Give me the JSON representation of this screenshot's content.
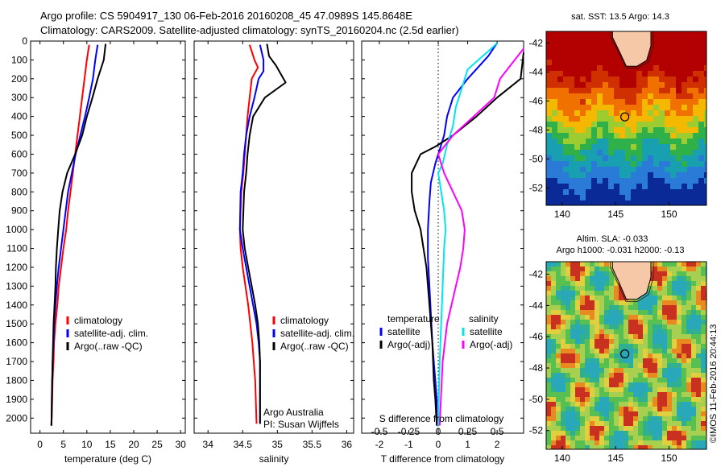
{
  "header": {
    "line1": "Argo profile: CS 5904917_130 06-Feb-2016 20160208_45 47.0989S 145.8648E",
    "line2": "Climatology: CARS2009. Satellite-adjusted climatology: synTS_20160204.nc (2.5d earlier)"
  },
  "colors": {
    "climatology": "#ff0000",
    "satellite": "#0000ff",
    "argo": "#000000",
    "sat_salinity": "#00e5ee",
    "argo_salinity": "#ff00ff"
  },
  "depth_axis": {
    "ticks": [
      0,
      100,
      200,
      300,
      400,
      500,
      600,
      700,
      800,
      900,
      1000,
      1100,
      1200,
      1300,
      1400,
      1500,
      1600,
      1700,
      1800,
      1900,
      2000
    ]
  },
  "chart_data": [
    {
      "type": "line",
      "id": "temperature",
      "xlabel": "temperature (deg C)",
      "xlim": [
        -2,
        31
      ],
      "ylim": [
        0,
        2080
      ],
      "xticks": [
        0,
        5,
        10,
        15,
        20,
        25,
        30
      ],
      "legend": [
        "climatology",
        "satellite-adj. clim.",
        "Argo(..raw -QC)"
      ],
      "series": [
        {
          "name": "climatology",
          "color": "#ff0000",
          "x": [
            10.5,
            10.0,
            9.5,
            9.0,
            8.5,
            8.0,
            7.5,
            7.0,
            6.5,
            6.0,
            5.6,
            5.0,
            4.5,
            4.0,
            3.7,
            3.3,
            3.0,
            2.9,
            2.7,
            2.6,
            2.5,
            2.4
          ],
          "y": [
            20,
            100,
            200,
            300,
            400,
            500,
            600,
            700,
            800,
            900,
            1000,
            1100,
            1200,
            1300,
            1400,
            1500,
            1600,
            1700,
            1800,
            1900,
            2000,
            2040
          ]
        },
        {
          "name": "satellite-adj. clim.",
          "color": "#0000ff",
          "x": [
            12.3,
            11.8,
            11.3,
            10.5,
            9.6,
            8.6,
            7.6,
            6.8,
            6.0,
            5.5,
            5.0,
            4.5,
            4.0,
            3.6,
            3.3,
            3.0,
            2.9,
            2.7,
            2.6,
            2.5,
            2.45
          ],
          "y": [
            20,
            100,
            200,
            300,
            400,
            500,
            600,
            700,
            800,
            900,
            1000,
            1100,
            1200,
            1300,
            1400,
            1500,
            1600,
            1700,
            1800,
            1900,
            2040
          ]
        },
        {
          "name": "Argo(..raw -QC)",
          "color": "#000000",
          "x": [
            14.0,
            13.6,
            12.3,
            11.2,
            10.0,
            9.0,
            7.5,
            5.8,
            4.8,
            4.2,
            3.9,
            3.6,
            3.4,
            3.3,
            3.1,
            2.9,
            2.8,
            2.7,
            2.6,
            2.55,
            2.45
          ],
          "y": [
            15,
            100,
            200,
            300,
            400,
            500,
            600,
            700,
            800,
            900,
            1000,
            1100,
            1200,
            1300,
            1400,
            1500,
            1600,
            1700,
            1800,
            1900,
            2040
          ]
        }
      ]
    },
    {
      "type": "line",
      "id": "salinity",
      "xlabel": "salinity",
      "xlim": [
        33.8,
        36.1
      ],
      "ylim": [
        0,
        2080
      ],
      "xticks": [
        34,
        34.5,
        35,
        35.5,
        36
      ],
      "legend": [
        "climatology",
        "satellite-adj. clim.",
        "Argo(..raw -QC)"
      ],
      "series": [
        {
          "name": "climatology",
          "color": "#ff0000",
          "x": [
            34.6,
            34.67,
            34.72,
            34.63,
            34.6,
            34.57,
            34.55,
            34.53,
            34.51,
            34.48,
            34.46,
            34.47,
            34.5,
            34.54,
            34.58,
            34.61,
            34.64,
            34.66,
            34.68,
            34.7
          ],
          "y": [
            20,
            100,
            140,
            200,
            300,
            400,
            500,
            600,
            700,
            800,
            1000,
            1100,
            1200,
            1300,
            1400,
            1500,
            1600,
            1700,
            1800,
            2030
          ]
        },
        {
          "name": "satellite-adj. clim.",
          "color": "#0000ff",
          "x": [
            34.75,
            34.8,
            34.8,
            34.73,
            34.67,
            34.6,
            34.55,
            34.52,
            34.5,
            34.47,
            34.46,
            34.5,
            34.55,
            34.6,
            34.65,
            34.7,
            34.73,
            34.75,
            34.75
          ],
          "y": [
            20,
            100,
            160,
            200,
            300,
            400,
            500,
            600,
            700,
            800,
            1000,
            1100,
            1200,
            1300,
            1400,
            1500,
            1600,
            1700,
            2030
          ]
        },
        {
          "name": "Argo(..raw -QC)",
          "color": "#000000",
          "x": [
            34.85,
            34.88,
            34.98,
            35.12,
            34.82,
            34.65,
            34.6,
            34.57,
            34.55,
            34.52,
            34.5,
            34.53,
            34.58,
            34.63,
            34.68,
            34.72,
            34.74,
            34.75,
            34.75
          ],
          "y": [
            15,
            80,
            130,
            220,
            300,
            400,
            500,
            600,
            700,
            800,
            1000,
            1100,
            1200,
            1300,
            1400,
            1500,
            1600,
            1700,
            2030
          ]
        }
      ],
      "annotation": [
        "Argo Australia",
        "PI: Susan Wijffels"
      ]
    },
    {
      "type": "line",
      "id": "difference",
      "xlabel": "T difference from climatology",
      "xlabel_top": "S difference from climatology",
      "xlim": [
        -2.6,
        2.9
      ],
      "ylim": [
        0,
        2080
      ],
      "xticks": [
        -2,
        -1,
        0,
        1,
        2
      ],
      "xticks_top": [
        "-0.5",
        "-0.25",
        "0",
        "0.25",
        "0.5"
      ],
      "legend_temperature_title": "temperature",
      "legend_salinity_title": "salinity",
      "legend": [
        "satellite",
        "Argo(-adj)",
        "satellite",
        "Argo(-adj)"
      ],
      "series": [
        {
          "name": "satellite",
          "color": "#0000ff",
          "x": [
            2.0,
            1.7,
            1.0,
            0.5,
            0.3,
            0.2,
            0.1,
            -0.1,
            -0.25,
            -0.3,
            -0.35,
            -0.35,
            -0.3,
            -0.25,
            -0.2,
            -0.15,
            -0.1,
            -0.05,
            -0.05
          ],
          "y": [
            10,
            80,
            200,
            300,
            400,
            500,
            550,
            650,
            750,
            850,
            1000,
            1150,
            1300,
            1450,
            1600,
            1700,
            1800,
            1900,
            2040
          ]
        },
        {
          "name": "Argo(-adj)",
          "color": "#000000",
          "x": [
            2.9,
            2.8,
            2.0,
            1.3,
            0.5,
            -0.1,
            -0.6,
            -0.9,
            -0.9,
            -0.8,
            -0.6,
            -0.5,
            -0.4,
            -0.3,
            -0.2,
            -0.15,
            -0.1,
            -0.05
          ],
          "y": [
            60,
            200,
            300,
            400,
            500,
            560,
            600,
            700,
            800,
            900,
            1000,
            1100,
            1200,
            1400,
            1600,
            1800,
            1900,
            2040
          ]
        },
        {
          "name": "satellite",
          "color": "#00e5ee",
          "x": [
            2.0,
            1.8,
            1.0,
            0.8,
            0.6,
            0.5,
            0.3,
            0.15,
            0.0,
            0.1,
            0.2,
            0.25,
            0.2,
            0.15,
            0.1,
            0.05,
            0.02,
            0.0
          ],
          "y": [
            10,
            40,
            150,
            250,
            350,
            450,
            550,
            650,
            700,
            800,
            900,
            1000,
            1100,
            1300,
            1500,
            1700,
            1900,
            2040
          ]
        },
        {
          "name": "Argo(-adj)",
          "color": "#ff00ff",
          "x": [
            2.9,
            2.6,
            2.1,
            1.9,
            1.2,
            0.5,
            0.0,
            0.2,
            0.5,
            0.8,
            0.9,
            0.85,
            0.75,
            0.6,
            0.45,
            0.3,
            0.15,
            0.05
          ],
          "y": [
            40,
            100,
            200,
            300,
            400,
            500,
            600,
            700,
            800,
            900,
            1000,
            1100,
            1200,
            1300,
            1400,
            1500,
            1700,
            2040
          ]
        }
      ]
    },
    {
      "type": "heatmap",
      "id": "sst_map",
      "title": "sat. SST: 13.5  Argo: 14.3",
      "xticks": [
        140,
        145,
        150
      ],
      "yticks": [
        -42,
        -44,
        -46,
        -48,
        -50,
        -52
      ],
      "xlim": [
        138.5,
        153.5
      ],
      "ylim": [
        -53.2,
        -41.2
      ],
      "argo_position": [
        145.86,
        -47.1
      ]
    },
    {
      "type": "heatmap",
      "id": "sla_map",
      "title_line1": "Altim. SLA: -0.033",
      "title_line2": "Argo h1000: -0.031  h2000: -0.13",
      "xticks": [
        140,
        145,
        150
      ],
      "yticks": [
        -42,
        -44,
        -46,
        -48,
        -50,
        -52
      ],
      "xlim": [
        138.5,
        153.5
      ],
      "ylim": [
        -53.2,
        -41.2
      ],
      "argo_position": [
        145.86,
        -47.1
      ]
    }
  ],
  "credit": "©IMOS 11-Feb-2016 20:44:13"
}
